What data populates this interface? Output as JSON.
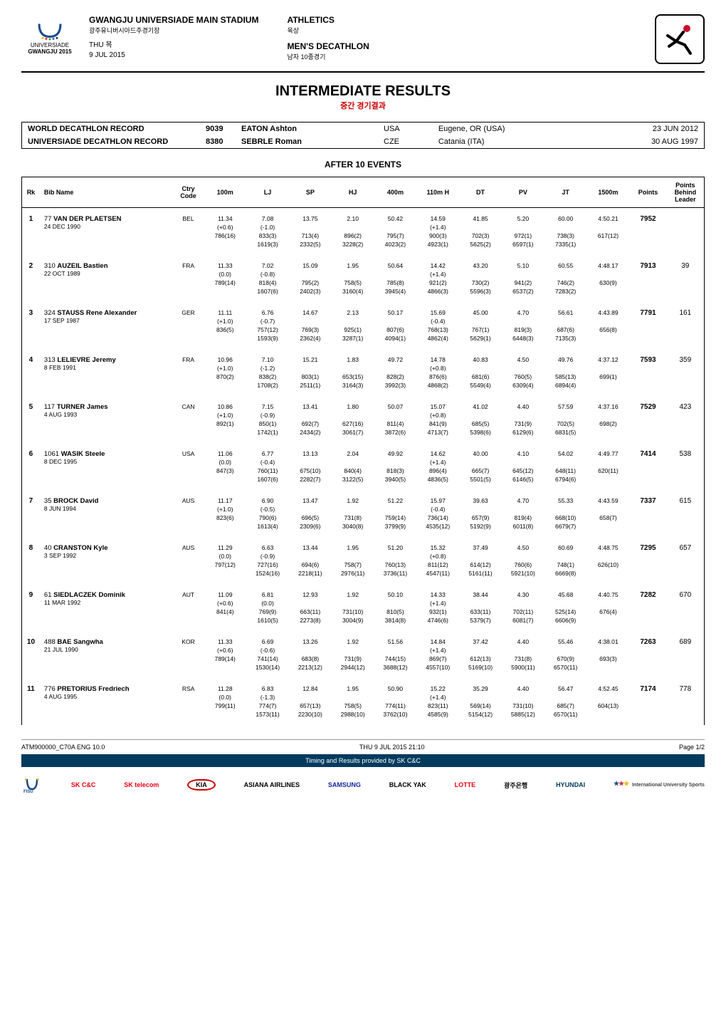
{
  "header": {
    "stadium_en": "GWANGJU UNIVERSIADE MAIN STADIUM",
    "stadium_kr": "광주유니버시아드주경기장",
    "day_en": "THU",
    "day_kr": "목",
    "date": "9 JUL 2015",
    "sport_en": "ATHLETICS",
    "sport_kr": "육상",
    "event_en": "MEN'S DECATHLON",
    "event_kr": "남자 10종경기",
    "logo_text1": "UNIVERSIADE",
    "logo_text2": "GWANGJU 2015"
  },
  "title": {
    "main": "INTERMEDIATE RESULTS",
    "sub": "중간 경기결과"
  },
  "records": [
    {
      "label": "WORLD DECATHLON RECORD",
      "score": "9039",
      "name": "EATON Ashton",
      "nat": "USA",
      "loc": "Eugene, OR (USA)",
      "date": "23 JUN 2012"
    },
    {
      "label": "UNIVERSIADE DECATHLON RECORD",
      "score": "8380",
      "name": "SEBRLE Roman",
      "nat": "CZE",
      "loc": "Catania (ITA)",
      "date": "30 AUG 1997"
    }
  ],
  "section_title": "AFTER 10 EVENTS",
  "columns": [
    "Rk",
    "Bib Name",
    "Ctry Code",
    "100m",
    "LJ",
    "SP",
    "HJ",
    "400m",
    "110m H",
    "DT",
    "PV",
    "JT",
    "1500m",
    "Points",
    "Points Behind Leader"
  ],
  "rows": [
    {
      "rk": "1",
      "bib": "77",
      "first": "VAN DER PLAETSEN",
      "dob": "24 DEC 1990",
      "ctry": "BEL",
      "r1": [
        "11.34",
        "7.08",
        "13.75",
        "2.10",
        "50.42",
        "14.59",
        "41.85",
        "5.20",
        "60.00",
        "4:50.21"
      ],
      "r2": [
        "(+0.6)",
        "(-1.0)",
        "",
        "",
        "",
        "(+1.4)",
        "",
        "",
        "",
        ""
      ],
      "r3": [
        "786(16)",
        "833(3)",
        "713(4)",
        "896(2)",
        "795(7)",
        "900(3)",
        "702(3)",
        "972(1)",
        "738(3)",
        "617(12)"
      ],
      "r4": [
        "",
        "1619(3)",
        "2332(5)",
        "3228(2)",
        "4023(2)",
        "4923(1)",
        "5625(2)",
        "6597(1)",
        "7335(1)",
        ""
      ],
      "points": "7952",
      "behind": ""
    },
    {
      "rk": "2",
      "bib": "310",
      "first": "AUZEIL Bastien",
      "dob": "22 OCT 1989",
      "ctry": "FRA",
      "r1": [
        "11.33",
        "7.02",
        "15.09",
        "1.95",
        "50.64",
        "14.42",
        "43.20",
        "5.10",
        "60.55",
        "4:48.17"
      ],
      "r2": [
        "(0.0)",
        "(-0.8)",
        "",
        "",
        "",
        "(+1.4)",
        "",
        "",
        "",
        ""
      ],
      "r3": [
        "789(14)",
        "818(4)",
        "795(2)",
        "758(5)",
        "785(8)",
        "921(2)",
        "730(2)",
        "941(2)",
        "746(2)",
        "630(9)"
      ],
      "r4": [
        "",
        "1607(6)",
        "2402(3)",
        "3160(4)",
        "3945(4)",
        "4866(3)",
        "5596(3)",
        "6537(2)",
        "7283(2)",
        ""
      ],
      "points": "7913",
      "behind": "39"
    },
    {
      "rk": "3",
      "bib": "324",
      "first": "STAUSS Rene Alexander",
      "dob": "17 SEP 1987",
      "ctry": "GER",
      "r1": [
        "11.11",
        "6.76",
        "14.67",
        "2.13",
        "50.17",
        "15.69",
        "45.00",
        "4.70",
        "56.61",
        "4:43.89"
      ],
      "r2": [
        "(+1.0)",
        "(-0.7)",
        "",
        "",
        "",
        "(-0.4)",
        "",
        "",
        "",
        ""
      ],
      "r3": [
        "836(5)",
        "757(12)",
        "769(3)",
        "925(1)",
        "807(6)",
        "768(13)",
        "767(1)",
        "819(3)",
        "687(6)",
        "656(8)"
      ],
      "r4": [
        "",
        "1593(9)",
        "2362(4)",
        "3287(1)",
        "4094(1)",
        "4862(4)",
        "5629(1)",
        "6448(3)",
        "7135(3)",
        ""
      ],
      "points": "7791",
      "behind": "161"
    },
    {
      "rk": "4",
      "bib": "313",
      "first": "LELIEVRE Jeremy",
      "dob": "8 FEB 1991",
      "ctry": "FRA",
      "r1": [
        "10.96",
        "7.10",
        "15.21",
        "1.83",
        "49.72",
        "14.78",
        "40.83",
        "4.50",
        "49.76",
        "4:37.12"
      ],
      "r2": [
        "(+1.0)",
        "(-1.2)",
        "",
        "",
        "",
        "(+0.8)",
        "",
        "",
        "",
        ""
      ],
      "r3": [
        "870(2)",
        "838(2)",
        "803(1)",
        "653(15)",
        "828(2)",
        "876(6)",
        "681(6)",
        "760(5)",
        "585(13)",
        "699(1)"
      ],
      "r4": [
        "",
        "1708(2)",
        "2511(1)",
        "3164(3)",
        "3992(3)",
        "4868(2)",
        "5549(4)",
        "6309(4)",
        "6894(4)",
        ""
      ],
      "points": "7593",
      "behind": "359"
    },
    {
      "rk": "5",
      "bib": "117",
      "first": "TURNER James",
      "dob": "4 AUG 1993",
      "ctry": "CAN",
      "r1": [
        "10.86",
        "7.15",
        "13.41",
        "1.80",
        "50.07",
        "15.07",
        "41.02",
        "4.40",
        "57.59",
        "4:37.16"
      ],
      "r2": [
        "(+1.0)",
        "(-0.9)",
        "",
        "",
        "",
        "(+0.8)",
        "",
        "",
        "",
        ""
      ],
      "r3": [
        "892(1)",
        "850(1)",
        "692(7)",
        "627(16)",
        "811(4)",
        "841(9)",
        "685(5)",
        "731(9)",
        "702(5)",
        "698(2)"
      ],
      "r4": [
        "",
        "1742(1)",
        "2434(2)",
        "3061(7)",
        "3872(6)",
        "4713(7)",
        "5398(6)",
        "6129(6)",
        "6831(5)",
        ""
      ],
      "points": "7529",
      "behind": "423"
    },
    {
      "rk": "6",
      "bib": "1061",
      "first": "WASIK Steele",
      "dob": "8 DEC 1995",
      "ctry": "USA",
      "r1": [
        "11.06",
        "6.77",
        "13.13",
        "2.04",
        "49.92",
        "14.62",
        "40.00",
        "4.10",
        "54.02",
        "4:49.77"
      ],
      "r2": [
        "(0.0)",
        "(-0.4)",
        "",
        "",
        "",
        "(+1.4)",
        "",
        "",
        "",
        ""
      ],
      "r3": [
        "847(3)",
        "760(11)",
        "675(10)",
        "840(4)",
        "818(3)",
        "896(4)",
        "665(7)",
        "645(12)",
        "648(11)",
        "620(11)"
      ],
      "r4": [
        "",
        "1607(6)",
        "2282(7)",
        "3122(5)",
        "3940(5)",
        "4836(5)",
        "5501(5)",
        "6146(5)",
        "6794(6)",
        ""
      ],
      "points": "7414",
      "behind": "538"
    },
    {
      "rk": "7",
      "bib": "35",
      "first": "BROCK David",
      "dob": "8 JUN 1994",
      "ctry": "AUS",
      "r1": [
        "11.17",
        "6.90",
        "13.47",
        "1.92",
        "51.22",
        "15.97",
        "39.63",
        "4.70",
        "55.33",
        "4:43.59"
      ],
      "r2": [
        "(+1.0)",
        "(-0.5)",
        "",
        "",
        "",
        "(-0.4)",
        "",
        "",
        "",
        ""
      ],
      "r3": [
        "823(6)",
        "790(6)",
        "696(5)",
        "731(8)",
        "759(14)",
        "736(14)",
        "657(9)",
        "819(4)",
        "668(10)",
        "658(7)"
      ],
      "r4": [
        "",
        "1613(4)",
        "2309(6)",
        "3040(8)",
        "3799(9)",
        "4535(12)",
        "5192(9)",
        "6011(8)",
        "6679(7)",
        ""
      ],
      "points": "7337",
      "behind": "615"
    },
    {
      "rk": "8",
      "bib": "40",
      "first": "CRANSTON Kyle",
      "dob": "3 SEP 1992",
      "ctry": "AUS",
      "r1": [
        "11.29",
        "6.63",
        "13.44",
        "1.95",
        "51.20",
        "15.32",
        "37.49",
        "4.50",
        "60.69",
        "4:48.75"
      ],
      "r2": [
        "(0.0)",
        "(-0.9)",
        "",
        "",
        "",
        "(+0.8)",
        "",
        "",
        "",
        ""
      ],
      "r3": [
        "797(12)",
        "727(16)",
        "694(6)",
        "758(7)",
        "760(13)",
        "811(12)",
        "614(12)",
        "760(6)",
        "748(1)",
        "626(10)"
      ],
      "r4": [
        "",
        "1524(16)",
        "2218(11)",
        "2976(11)",
        "3736(11)",
        "4547(11)",
        "5161(11)",
        "5921(10)",
        "6669(8)",
        ""
      ],
      "points": "7295",
      "behind": "657"
    },
    {
      "rk": "9",
      "bib": "61",
      "first": "SIEDLACZEK Dominik",
      "dob": "11 MAR 1992",
      "ctry": "AUT",
      "r1": [
        "11.09",
        "6.81",
        "12.93",
        "1.92",
        "50.10",
        "14.33",
        "38.44",
        "4.30",
        "45.68",
        "4:40.75"
      ],
      "r2": [
        "(+0.6)",
        "(0.0)",
        "",
        "",
        "",
        "(+1.4)",
        "",
        "",
        "",
        ""
      ],
      "r3": [
        "841(4)",
        "769(9)",
        "663(11)",
        "731(10)",
        "810(5)",
        "932(1)",
        "633(11)",
        "702(11)",
        "525(14)",
        "676(4)"
      ],
      "r4": [
        "",
        "1610(5)",
        "2273(8)",
        "3004(9)",
        "3814(8)",
        "4746(6)",
        "5379(7)",
        "6081(7)",
        "6606(9)",
        ""
      ],
      "points": "7282",
      "behind": "670"
    },
    {
      "rk": "10",
      "bib": "488",
      "first": "BAE Sangwha",
      "dob": "21 JUL 1990",
      "ctry": "KOR",
      "r1": [
        "11.33",
        "6.69",
        "13.26",
        "1.92",
        "51.56",
        "14.84",
        "37.42",
        "4.40",
        "55.46",
        "4:38.01"
      ],
      "r2": [
        "(+0.6)",
        "(-0.6)",
        "",
        "",
        "",
        "(+1.4)",
        "",
        "",
        "",
        ""
      ],
      "r3": [
        "789(14)",
        "741(14)",
        "683(8)",
        "731(9)",
        "744(15)",
        "869(7)",
        "612(13)",
        "731(8)",
        "670(9)",
        "693(3)"
      ],
      "r4": [
        "",
        "1530(14)",
        "2213(12)",
        "2944(12)",
        "3688(12)",
        "4557(10)",
        "5169(10)",
        "5900(11)",
        "6570(11)",
        ""
      ],
      "points": "7263",
      "behind": "689"
    },
    {
      "rk": "11",
      "bib": "776",
      "first": "PRETORIUS Fredriech",
      "dob": "4 AUG 1995",
      "ctry": "RSA",
      "r1": [
        "11.28",
        "6.83",
        "12.84",
        "1.95",
        "50.90",
        "15.22",
        "35.29",
        "4.40",
        "56.47",
        "4:52.45"
      ],
      "r2": [
        "(0.0)",
        "(-1.3)",
        "",
        "",
        "",
        "(+1.4)",
        "",
        "",
        "",
        ""
      ],
      "r3": [
        "799(11)",
        "774(7)",
        "657(13)",
        "758(5)",
        "774(11)",
        "823(11)",
        "569(14)",
        "731(10)",
        "685(7)",
        "604(13)"
      ],
      "r4": [
        "",
        "1573(11)",
        "2230(10)",
        "2988(10)",
        "3762(10)",
        "4585(9)",
        "5154(12)",
        "5885(12)",
        "6570(11)",
        ""
      ],
      "points": "7174",
      "behind": "778"
    }
  ],
  "footer": {
    "doc_id": "ATM900000_C70A ENG 10.0",
    "timing": "Timing and Results provided by SK C&C",
    "timestamp": "THU 9 JUL 2015 21:10",
    "page": "Page 1/2",
    "sponsors": [
      "FISU",
      "SK C&C",
      "SK telecom",
      "KIA",
      "ASIANA AIRLINES",
      "SAMSUNG",
      "BLACK YAK",
      "LOTTE",
      "광주은행",
      "HYUNDAI",
      "International University Sports"
    ]
  },
  "colors": {
    "accent_red": "#c00",
    "border": "#000",
    "timing_bg": "#003a5d"
  }
}
